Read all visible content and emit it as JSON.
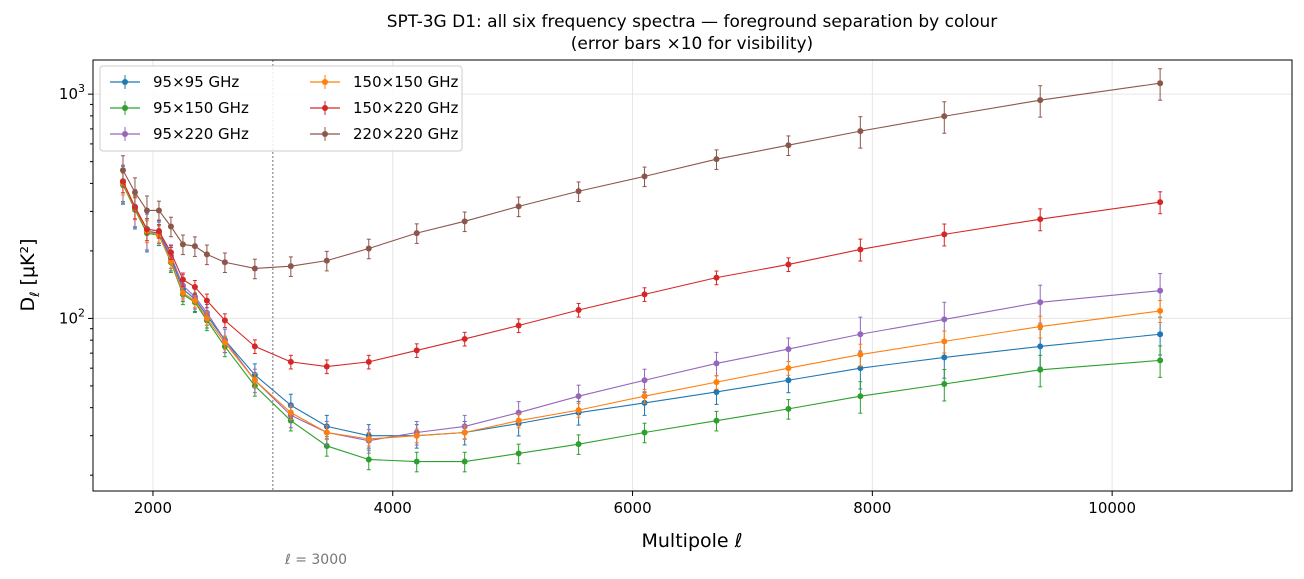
{
  "chart_data": {
    "type": "line",
    "title": "SPT-3G D1: all six frequency spectra — foreground separation by colour",
    "subtitle": "(error bars ×10 for visibility)",
    "xlabel": "Multipole  ℓ",
    "ylabel_main": "D",
    "ylabel_sub": "ℓ",
    "ylabel_unit": " [μK²]",
    "xlim": [
      1500,
      11500
    ],
    "ylim": [
      17,
      1420
    ],
    "yscale": "log",
    "grid": true,
    "legend_placement": "top-left",
    "x_ticks": [
      2000,
      4000,
      6000,
      8000,
      10000
    ],
    "x_tick_labels": [
      "2000",
      "4000",
      "6000",
      "8000",
      "10000"
    ],
    "y_ticks": [
      100,
      1000
    ],
    "y_tick_labels": [
      "10²",
      "10³"
    ],
    "annotation": {
      "x": 3000,
      "label": "ℓ = 3000"
    },
    "x": [
      1750,
      1850,
      1950,
      2050,
      2150,
      2250,
      2350,
      2450,
      2600,
      2850,
      3150,
      3450,
      3800,
      4200,
      4600,
      5050,
      5550,
      6100,
      6700,
      7300,
      7900,
      8600,
      9400,
      10400
    ],
    "series": [
      {
        "name": "95×95 GHz",
        "color": "#1f77b4",
        "rel_err": 0.12,
        "values": [
          400,
          310,
          245,
          240,
          185,
          135,
          122,
          103,
          80,
          56,
          41,
          33,
          30,
          30,
          31,
          34,
          38,
          42,
          47,
          53,
          60,
          67,
          75,
          85
        ]
      },
      {
        "name": "95×150 GHz",
        "color": "#2ca02c",
        "rel_err": 0.1,
        "values": [
          395,
          305,
          240,
          235,
          178,
          128,
          118,
          98,
          75,
          50,
          35,
          27,
          23.5,
          23,
          23,
          25,
          27.5,
          31,
          35,
          39.5,
          45,
          51,
          59,
          65
        ]
      },
      {
        "name": "95×220 GHz",
        "color": "#9467bd",
        "rel_err": 0.12,
        "values": [
          405,
          315,
          250,
          245,
          190,
          140,
          125,
          106,
          80,
          53,
          37,
          31,
          28.5,
          31,
          33,
          38,
          45,
          53,
          63,
          73,
          85,
          99,
          118,
          133
        ]
      },
      {
        "name": "150×150 GHz",
        "color": "#ff7f0e",
        "rel_err": 0.07,
        "values": [
          400,
          310,
          245,
          235,
          180,
          130,
          120,
          100,
          78,
          53,
          38,
          31,
          29,
          30,
          31,
          35,
          39,
          45,
          52,
          60,
          69,
          79,
          92,
          108
        ]
      },
      {
        "name": "150×220 GHz",
        "color": "#d62728",
        "rel_err": 0.07,
        "values": [
          409,
          313,
          250,
          245,
          197,
          149,
          138,
          120,
          98,
          75,
          64,
          61,
          64,
          72,
          81,
          93,
          109,
          128,
          152,
          174,
          203,
          237,
          277,
          330
        ]
      },
      {
        "name": "220×220 GHz",
        "color": "#8c564b",
        "rel_err": 0.1,
        "values": [
          458,
          365,
          303,
          303,
          257,
          214,
          210,
          193,
          178,
          167,
          171,
          181,
          205,
          240,
          271,
          316,
          369,
          430,
          513,
          592,
          684,
          797,
          940,
          1119
        ]
      }
    ]
  }
}
